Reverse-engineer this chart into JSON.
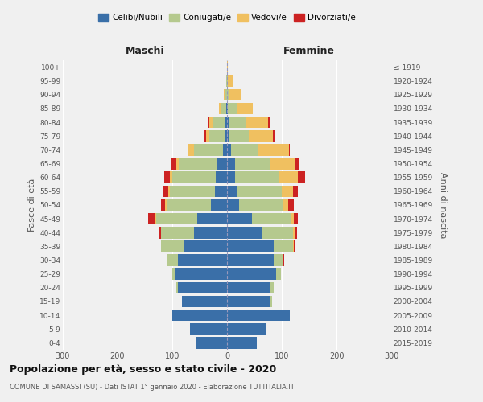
{
  "age_groups": [
    "0-4",
    "5-9",
    "10-14",
    "15-19",
    "20-24",
    "25-29",
    "30-34",
    "35-39",
    "40-44",
    "45-49",
    "50-54",
    "55-59",
    "60-64",
    "65-69",
    "70-74",
    "75-79",
    "80-84",
    "85-89",
    "90-94",
    "95-99",
    "100+"
  ],
  "birth_years": [
    "2015-2019",
    "2010-2014",
    "2005-2009",
    "2000-2004",
    "1995-1999",
    "1990-1994",
    "1985-1989",
    "1980-1984",
    "1975-1979",
    "1970-1974",
    "1965-1969",
    "1960-1964",
    "1955-1959",
    "1950-1954",
    "1945-1949",
    "1940-1944",
    "1935-1939",
    "1930-1934",
    "1925-1929",
    "1920-1924",
    "≤ 1919"
  ],
  "maschi": {
    "celibi": [
      58,
      68,
      100,
      82,
      90,
      95,
      90,
      80,
      60,
      55,
      30,
      22,
      20,
      18,
      8,
      3,
      5,
      2,
      0,
      0,
      0
    ],
    "coniugati": [
      0,
      0,
      0,
      0,
      2,
      5,
      20,
      40,
      60,
      75,
      80,
      82,
      80,
      70,
      52,
      30,
      20,
      8,
      3,
      1,
      0
    ],
    "vedovi": [
      0,
      0,
      0,
      0,
      0,
      0,
      0,
      0,
      0,
      2,
      3,
      3,
      5,
      5,
      12,
      5,
      8,
      5,
      3,
      1,
      0
    ],
    "divorziati": [
      0,
      0,
      0,
      0,
      0,
      0,
      0,
      0,
      5,
      12,
      8,
      10,
      10,
      8,
      0,
      5,
      3,
      0,
      0,
      0,
      0
    ]
  },
  "femmine": {
    "nubili": [
      55,
      72,
      115,
      80,
      80,
      90,
      85,
      85,
      65,
      45,
      22,
      18,
      15,
      15,
      8,
      4,
      5,
      2,
      0,
      0,
      0
    ],
    "coniugate": [
      0,
      0,
      0,
      2,
      5,
      8,
      18,
      35,
      55,
      72,
      80,
      82,
      80,
      65,
      50,
      35,
      30,
      15,
      5,
      2,
      0
    ],
    "vedove": [
      0,
      0,
      0,
      0,
      0,
      0,
      0,
      2,
      3,
      5,
      10,
      20,
      35,
      45,
      55,
      45,
      40,
      30,
      20,
      8,
      1
    ],
    "divorziate": [
      0,
      0,
      0,
      0,
      0,
      0,
      2,
      3,
      5,
      8,
      10,
      10,
      12,
      8,
      2,
      3,
      5,
      0,
      0,
      0,
      0
    ]
  },
  "colors": {
    "celibi": "#3a6fa8",
    "coniugati": "#b5c98e",
    "vedovi": "#f0c060",
    "divorziati": "#cc2222"
  },
  "xlim": 300,
  "title": "Popolazione per età, sesso e stato civile - 2020",
  "subtitle": "COMUNE DI SAMASSI (SU) - Dati ISTAT 1° gennaio 2020 - Elaborazione TUTTITALIA.IT",
  "ylabel_left": "Fasce di età",
  "ylabel_right": "Anni di nascita",
  "xlabel_left": "Maschi",
  "xlabel_right": "Femmine",
  "bg_color": "#f0f0f0"
}
